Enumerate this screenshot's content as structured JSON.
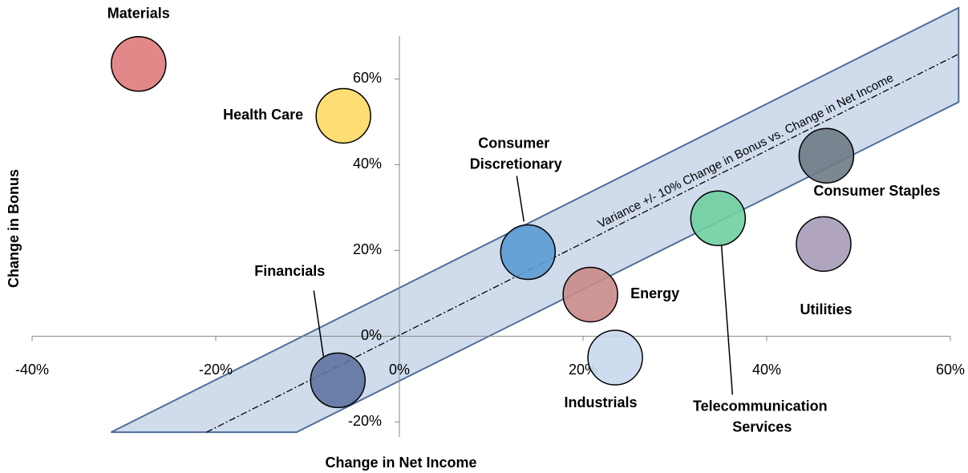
{
  "chart_data": {
    "type": "bubble",
    "x_label": "Change in Net Income",
    "y_label": "Change in Bonus",
    "annotation": "Variance +/- 10% Change in Bonus vs. Change in Net Income",
    "xlim": [
      -40,
      60
    ],
    "ylim": [
      -25,
      70
    ],
    "xticks": [
      {
        "value": -40,
        "label": "-40%"
      },
      {
        "value": -20,
        "label": "-20%"
      },
      {
        "value": 0,
        "label": "0%"
      },
      {
        "value": 20,
        "label": "20%"
      },
      {
        "value": 40,
        "label": "40%"
      },
      {
        "value": 60,
        "label": "60%"
      }
    ],
    "yticks": [
      {
        "value": -20,
        "label": "-20%"
      },
      {
        "value": 0,
        "label": "0%"
      },
      {
        "value": 20,
        "label": "20%"
      },
      {
        "value": 40,
        "label": "40%"
      },
      {
        "value": 60,
        "label": "60%"
      }
    ],
    "band": {
      "color": "#d0dcec",
      "x": [
        -31.4,
        60.9,
        60.9,
        -11.2
      ],
      "y": [
        -22.4,
        76.6,
        54.6,
        -22.4
      ]
    },
    "trend": {
      "x": [
        -21,
        60.9
      ],
      "y": [
        -22.4,
        65.8
      ]
    },
    "series": [
      {
        "name": "Materials",
        "color": "#e07b7b",
        "x": [
          -28.4
        ],
        "values": [
          63.5
        ]
      },
      {
        "name": "Health Care",
        "color": "#ffd966",
        "x": [
          -6.1
        ],
        "values": [
          51.4
        ]
      },
      {
        "name": "Consumer Discretionary",
        "color": "#5b9bd5",
        "x": [
          14.0
        ],
        "values": [
          19.6
        ]
      },
      {
        "name": "Financials",
        "color": "#5f73a0",
        "x": [
          -6.7
        ],
        "values": [
          -10.3
        ]
      },
      {
        "name": "Energy",
        "color": "#c98a8a",
        "x": [
          20.8
        ],
        "values": [
          9.7
        ]
      },
      {
        "name": "Industrials",
        "color": "#c8d8ec",
        "x": [
          23.5
        ],
        "values": [
          -5.0
        ]
      },
      {
        "name": "Telecommunication Services",
        "color": "#6fd0a0",
        "x": [
          34.7
        ],
        "values": [
          27.5
        ]
      },
      {
        "name": "Consumer Staples",
        "color": "#6e7a86",
        "x": [
          46.5
        ],
        "values": [
          42.1
        ]
      },
      {
        "name": "Utilities",
        "color": "#a89ab8",
        "x": [
          46.2
        ],
        "values": [
          21.5
        ]
      }
    ]
  }
}
